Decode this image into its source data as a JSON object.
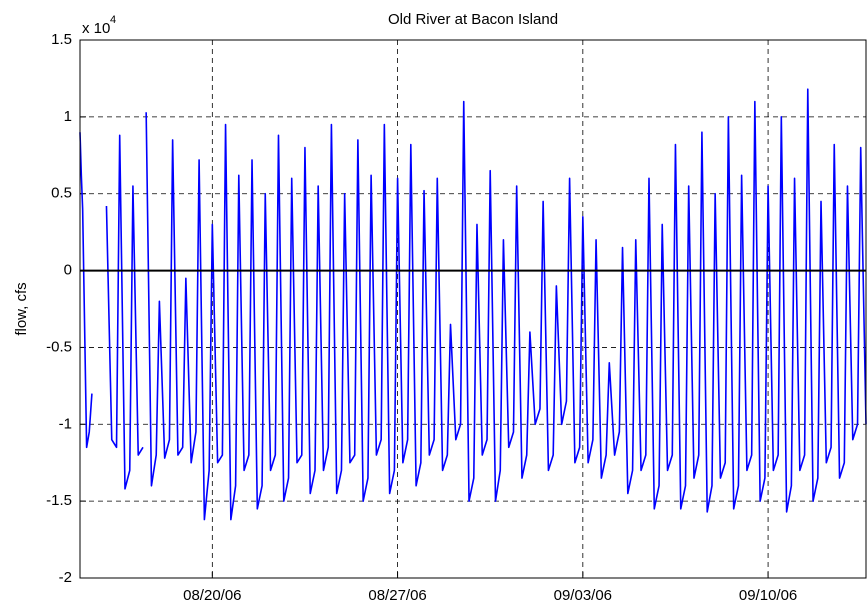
{
  "chart_data": {
    "type": "line",
    "title": "Old River at Bacon Island",
    "ylabel": "flow, cfs",
    "axis_multiplier": "x 10",
    "axis_multiplier_exponent": "4",
    "xlim": [
      227.0,
      256.7
    ],
    "ylim": [
      -2,
      1.5
    ],
    "xticks": [
      {
        "value": 232,
        "label": "08/20/06"
      },
      {
        "value": 239,
        "label": "08/27/06"
      },
      {
        "value": 246,
        "label": "09/03/06"
      },
      {
        "value": 253,
        "label": "09/10/06"
      }
    ],
    "yticks": [
      -2,
      -1.5,
      -1,
      -0.5,
      0,
      0.5,
      1,
      1.5
    ],
    "grid": true,
    "zero_line": true,
    "series": [
      {
        "color": "#0000ff",
        "x": [
          227.0,
          227.05,
          227.1,
          227.25,
          227.35,
          227.45,
          227.6,
          228.0,
          228.2,
          228.38,
          228.5,
          228.7,
          228.88,
          229.0,
          229.2,
          229.38,
          229.45,
          229.5,
          229.7,
          229.88,
          230.0,
          230.2,
          230.38,
          230.5,
          230.7,
          230.88,
          231.0,
          231.2,
          231.38,
          231.5,
          231.7,
          231.88,
          232.0,
          232.2,
          232.38,
          232.5,
          232.7,
          232.88,
          233.0,
          233.2,
          233.38,
          233.5,
          233.7,
          233.88,
          234.0,
          234.2,
          234.38,
          234.5,
          234.7,
          234.88,
          235.0,
          235.2,
          235.38,
          235.5,
          235.7,
          235.88,
          236.0,
          236.2,
          236.38,
          236.5,
          236.7,
          236.88,
          237.0,
          237.2,
          237.38,
          237.5,
          237.7,
          237.88,
          238.0,
          238.2,
          238.38,
          238.5,
          238.7,
          238.88,
          239.0,
          239.2,
          239.38,
          239.5,
          239.7,
          239.88,
          240.0,
          240.2,
          240.38,
          240.5,
          240.7,
          240.88,
          241.0,
          241.2,
          241.38,
          241.5,
          241.7,
          241.88,
          242.0,
          242.2,
          242.38,
          242.5,
          242.7,
          242.88,
          243.0,
          243.2,
          243.38,
          243.5,
          243.7,
          243.88,
          244.0,
          244.2,
          244.38,
          244.5,
          244.7,
          244.88,
          245.0,
          245.2,
          245.38,
          245.5,
          245.7,
          245.88,
          246.0,
          246.2,
          246.38,
          246.5,
          246.7,
          246.88,
          247.0,
          247.2,
          247.38,
          247.5,
          247.7,
          247.88,
          248.0,
          248.2,
          248.38,
          248.5,
          248.7,
          248.88,
          249.0,
          249.2,
          249.38,
          249.5,
          249.7,
          249.88,
          250.0,
          250.2,
          250.38,
          250.5,
          250.7,
          250.88,
          251.0,
          251.2,
          251.38,
          251.5,
          251.7,
          251.88,
          252.0,
          252.2,
          252.38,
          252.5,
          252.7,
          252.88,
          253.0,
          253.2,
          253.38,
          253.5,
          253.7,
          253.88,
          254.0,
          254.2,
          254.38,
          254.5,
          254.7,
          254.88,
          255.0,
          255.2,
          255.38,
          255.5,
          255.7,
          255.88,
          256.0,
          256.2,
          256.38,
          256.5,
          256.7
        ],
        "values": [
          0.9,
          0.62,
          0.4,
          -1.15,
          -1.05,
          -0.8,
          null,
          0.42,
          -1.1,
          -1.15,
          0.88,
          -1.42,
          -1.3,
          0.55,
          -1.2,
          -1.15,
          null,
          1.03,
          -1.4,
          -1.2,
          -0.2,
          -1.22,
          -1.1,
          0.85,
          -1.2,
          -1.15,
          -0.05,
          -1.25,
          -1.05,
          0.72,
          -1.62,
          -1.3,
          0.3,
          -1.25,
          -1.2,
          0.95,
          -1.62,
          -1.4,
          0.62,
          -1.3,
          -1.2,
          0.72,
          -1.55,
          -1.4,
          0.5,
          -1.3,
          -1.2,
          0.88,
          -1.5,
          -1.35,
          0.6,
          -1.25,
          -1.2,
          0.8,
          -1.45,
          -1.3,
          0.55,
          -1.3,
          -1.15,
          0.95,
          -1.45,
          -1.3,
          0.5,
          -1.25,
          -1.2,
          0.85,
          -1.5,
          -1.35,
          0.62,
          -1.2,
          -1.1,
          0.95,
          -1.45,
          -1.3,
          0.6,
          -1.25,
          -1.1,
          0.82,
          -1.4,
          -1.25,
          0.52,
          -1.2,
          -1.1,
          0.6,
          -1.3,
          -1.2,
          -0.35,
          -1.1,
          -1.0,
          1.1,
          -1.5,
          -1.35,
          0.3,
          -1.2,
          -1.1,
          0.65,
          -1.5,
          -1.3,
          0.2,
          -1.15,
          -1.05,
          0.55,
          -1.35,
          -1.2,
          -0.4,
          -1.0,
          -0.9,
          0.45,
          -1.3,
          -1.2,
          -0.1,
          -1.0,
          -0.85,
          0.6,
          -1.25,
          -1.15,
          0.35,
          -1.25,
          -1.1,
          0.2,
          -1.35,
          -1.2,
          -0.6,
          -1.2,
          -1.05,
          0.15,
          -1.45,
          -1.3,
          0.2,
          -1.3,
          -1.2,
          0.6,
          -1.55,
          -1.4,
          0.3,
          -1.3,
          -1.2,
          0.82,
          -1.55,
          -1.4,
          0.55,
          -1.35,
          -1.2,
          0.9,
          -1.57,
          -1.4,
          0.5,
          -1.35,
          -1.25,
          1.0,
          -1.55,
          -1.4,
          0.62,
          -1.3,
          -1.2,
          1.1,
          -1.5,
          -1.35,
          0.55,
          -1.3,
          -1.2,
          1.0,
          -1.57,
          -1.4,
          0.6,
          -1.3,
          -1.2,
          1.18,
          -1.5,
          -1.35,
          0.45,
          -1.25,
          -1.15,
          0.82,
          -1.35,
          -1.25,
          0.55,
          -1.1,
          -1.0,
          0.8,
          -1.0
        ]
      }
    ]
  }
}
